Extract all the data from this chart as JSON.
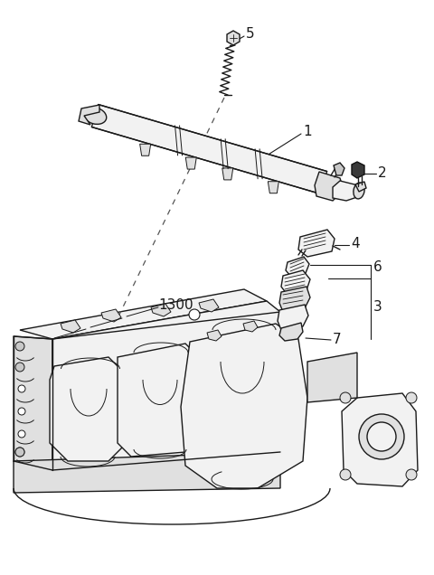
{
  "background_color": "#ffffff",
  "line_color": "#1a1a1a",
  "label_color": "#000000",
  "figsize": [
    4.8,
    6.36
  ],
  "dpi": 100,
  "lw_main": 1.0,
  "lw_thin": 0.7,
  "lw_thick": 1.3
}
